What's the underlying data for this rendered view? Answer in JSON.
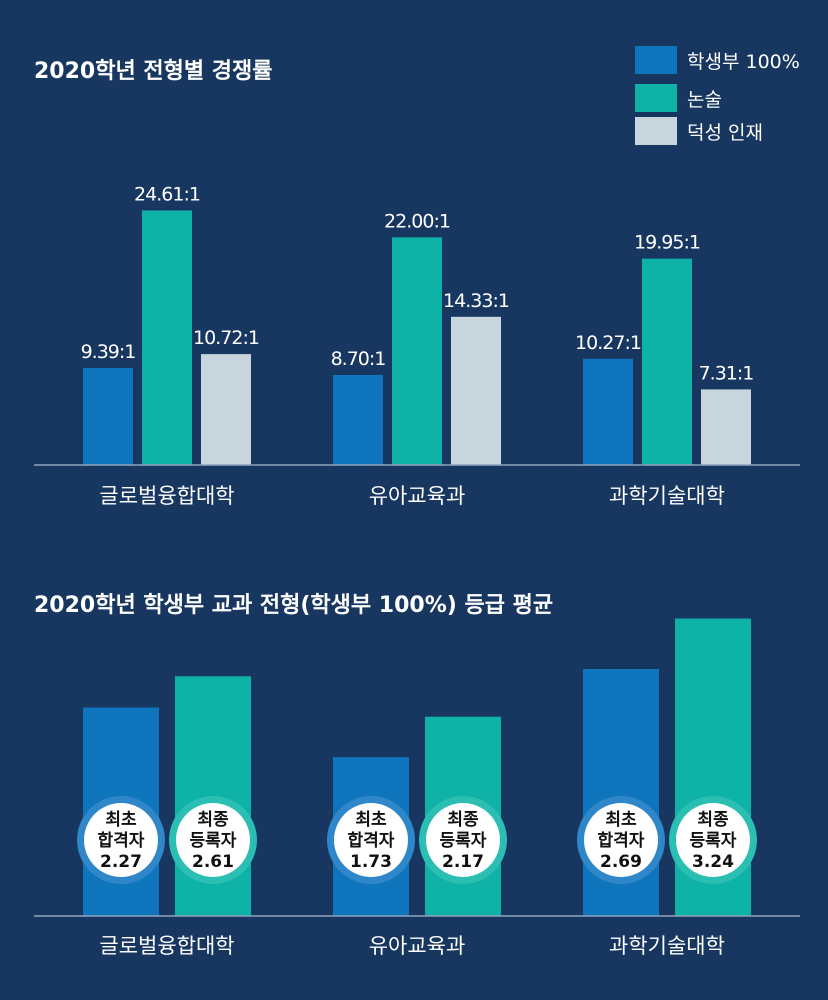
{
  "colors": {
    "background": "#173660",
    "series_1": "#0f76bd",
    "series_2": "#0fb2a6",
    "series_3": "#c8d5dc",
    "text": "#ffffff",
    "axis": "#8fa3bd",
    "badge_fill": "#ffffff",
    "badge_text": "#111111",
    "badge_ring_1": "#2f86c8",
    "badge_ring_2": "#2bbfb4"
  },
  "chart_data": [
    {
      "type": "bar",
      "title": "2020학년 전형별 경쟁률",
      "categories": [
        "글로벌융합대학",
        "유아교육과",
        "과학기술대학"
      ],
      "series": [
        {
          "name": "학생부 100%",
          "values": [
            9.39,
            8.7,
            10.27
          ],
          "labels": [
            "9.39:1",
            "8.70:1",
            "10.27:1"
          ]
        },
        {
          "name": "논술",
          "values": [
            24.61,
            22.0,
            19.95
          ],
          "labels": [
            "24.61:1",
            "22.00:1",
            "19.95:1"
          ]
        },
        {
          "name": "덕성 인재",
          "values": [
            10.72,
            14.33,
            7.31
          ],
          "labels": [
            "10.72:1",
            "14.33:1",
            "7.31:1"
          ]
        }
      ],
      "legend": "top-right",
      "ylim": [
        0,
        29
      ],
      "grid": false
    },
    {
      "type": "bar",
      "title": "2020학년 학생부 교과 전형(학생부 100%) 등급 평균",
      "categories": [
        "글로벌융합대학",
        "유아교육과",
        "과학기술대학"
      ],
      "series": [
        {
          "badge_line1": "최초",
          "badge_line2": "합격자",
          "values": [
            2.27,
            1.73,
            2.69
          ],
          "labels": [
            "2.27",
            "1.73",
            "2.69"
          ]
        },
        {
          "badge_line1": "최종",
          "badge_line2": "등록자",
          "values": [
            2.61,
            2.17,
            3.24
          ],
          "labels": [
            "2.61",
            "2.17",
            "3.24"
          ]
        }
      ],
      "ylim": [
        0,
        3.55
      ],
      "grid": false
    }
  ]
}
